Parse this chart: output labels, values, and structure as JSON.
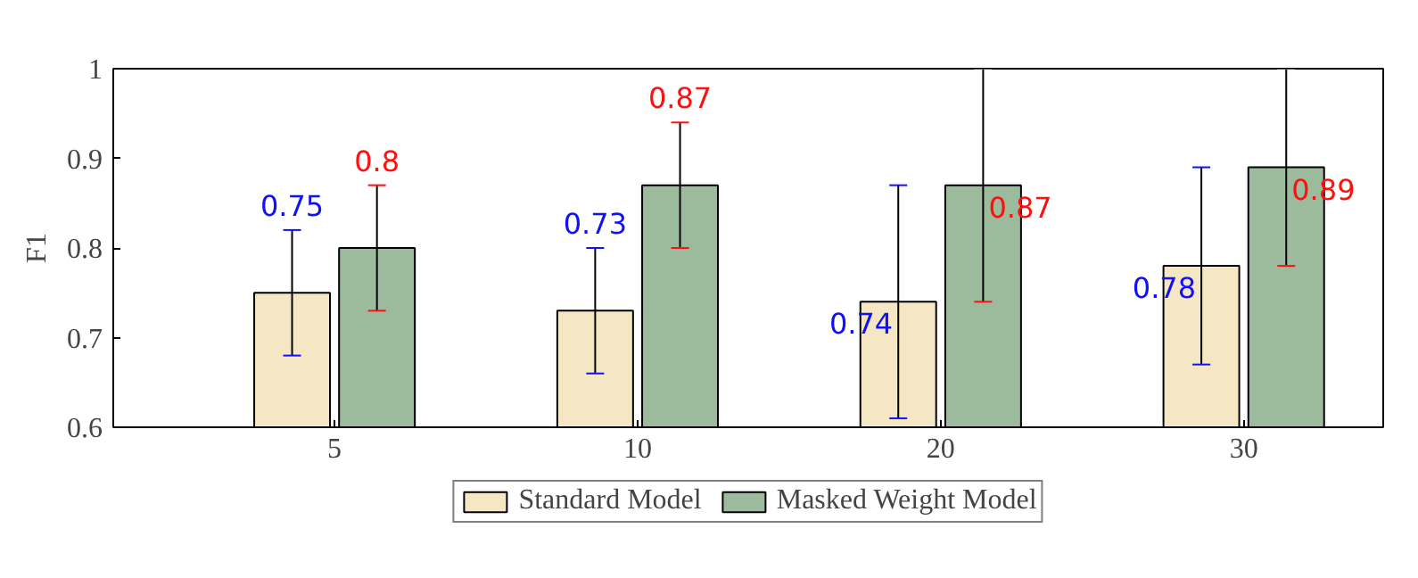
{
  "chart_data": {
    "type": "bar",
    "ylabel": "F1",
    "categories": [
      "5",
      "10",
      "20",
      "30"
    ],
    "series": [
      {
        "name": "Standard Model",
        "color": "#f5e7c3",
        "values": [
          0.75,
          0.73,
          0.74,
          0.78
        ],
        "errors": [
          [
            0.68,
            0.82
          ],
          [
            0.66,
            0.8
          ],
          [
            0.61,
            0.87
          ],
          [
            0.67,
            0.89
          ]
        ]
      },
      {
        "name": "Masked Weight Model",
        "color": "#9cbb9c",
        "values": [
          0.8,
          0.87,
          0.87,
          0.89
        ],
        "errors": [
          [
            0.73,
            0.87
          ],
          [
            0.8,
            0.94
          ],
          [
            0.74,
            1.0
          ],
          [
            0.78,
            1.0
          ]
        ]
      }
    ],
    "ylim": [
      0.6,
      1.0
    ],
    "yticks": [
      0.6,
      0.7,
      0.8,
      0.9,
      1
    ],
    "data_labels": true,
    "grid": false,
    "legend": "bottom"
  }
}
